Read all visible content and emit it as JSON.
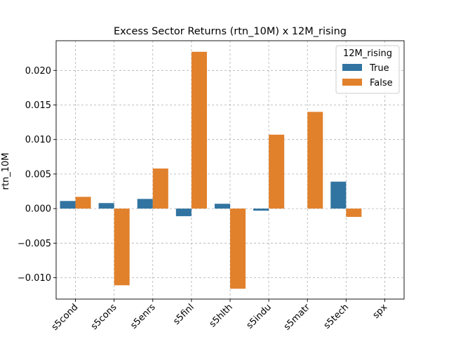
{
  "chart_data": {
    "type": "bar",
    "title": "Excess Sector Returns (rtn_10M) x 12M_rising",
    "xlabel": "",
    "ylabel": "rtn_10M",
    "categories": [
      "s5cond",
      "s5cons",
      "s5enrs",
      "s5finl",
      "s5hlth",
      "s5indu",
      "s5matr",
      "s5tech",
      "spx"
    ],
    "series": [
      {
        "name": "True",
        "color": "#3274a1",
        "values": [
          0.0011,
          0.0008,
          0.0014,
          -0.0011,
          0.0007,
          -0.0003,
          null,
          0.0039,
          null
        ]
      },
      {
        "name": "False",
        "color": "#e1812c",
        "values": [
          0.0017,
          -0.0111,
          0.0058,
          0.0227,
          -0.0116,
          0.0107,
          0.014,
          -0.0012,
          null
        ]
      }
    ],
    "ylim": [
      -0.0131,
      0.0243
    ],
    "yticks": [
      -0.01,
      -0.005,
      0.0,
      0.005,
      0.01,
      0.015,
      0.02
    ],
    "ytick_labels": [
      "−0.010",
      "−0.005",
      "0.000",
      "0.005",
      "0.010",
      "0.015",
      "0.020"
    ],
    "grid": true,
    "legend": {
      "title": "12M_rising",
      "placement": "top-right"
    }
  }
}
